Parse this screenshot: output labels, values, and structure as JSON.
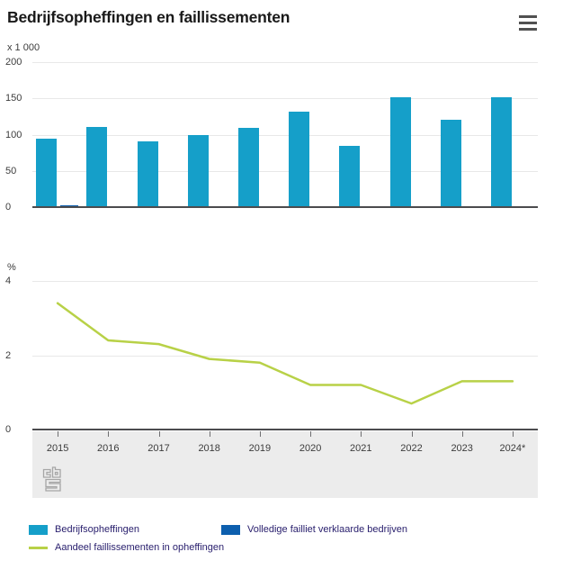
{
  "title": "Bedrijfsopheffingen en faillissementen",
  "menu": {
    "tooltip": "menu"
  },
  "colors": {
    "bar_teal": "#159fc9",
    "bar_darkblue": "#0d5fae",
    "line_green": "#b8d147",
    "axis": "#4c4c4e",
    "grid": "#e8e8e8",
    "band": "#ececec",
    "tick_text": "#3c3c3c",
    "legend_text": "#271d6c"
  },
  "chart_data": [
    {
      "type": "bar",
      "title": "Bedrijfsopheffingen en faillissementen",
      "unit": "x 1 000",
      "categories": [
        "2015",
        "2016",
        "2017",
        "2018",
        "2019",
        "2020",
        "2021",
        "2022",
        "2023",
        "2024*"
      ],
      "series": [
        {
          "name": "Bedrijfsopheffingen",
          "color": "#159fc9",
          "values": [
            95,
            111,
            91,
            100,
            109,
            132,
            85,
            151,
            121,
            152
          ]
        },
        {
          "name": "Volledige failliet verklaarde bedrijven",
          "color": "#0d5fae",
          "values": [
            3,
            0,
            0,
            0,
            0,
            0,
            0,
            0,
            0,
            0
          ]
        }
      ],
      "yticks": [
        0,
        50,
        100,
        150,
        200
      ],
      "ylim": [
        0,
        200
      ],
      "grid": true,
      "legend_position": "bottom"
    },
    {
      "type": "line",
      "unit": "%",
      "categories": [
        "2015",
        "2016",
        "2017",
        "2018",
        "2019",
        "2020",
        "2021",
        "2022",
        "2023",
        "2024*"
      ],
      "series": [
        {
          "name": "Aandeel faillissementen in opheffingen",
          "color": "#b8d147",
          "values": [
            3.4,
            2.4,
            2.3,
            1.9,
            1.8,
            1.2,
            1.2,
            0.7,
            1.3,
            1.3
          ]
        }
      ],
      "yticks": [
        0,
        2,
        4
      ],
      "ylim": [
        0,
        4
      ],
      "grid": true,
      "legend_position": "bottom"
    }
  ],
  "legend": {
    "items": [
      {
        "label": "Bedrijfsopheffingen",
        "swatch": "bar",
        "color": "#159fc9"
      },
      {
        "label": "Volledige failliet verklaarde bedrijven",
        "swatch": "bar",
        "color": "#0d5fae"
      },
      {
        "label": "Aandeel faillissementen in opheffingen",
        "swatch": "line",
        "color": "#b8d147"
      }
    ]
  },
  "footer": {
    "logo": "cbs-logo"
  }
}
